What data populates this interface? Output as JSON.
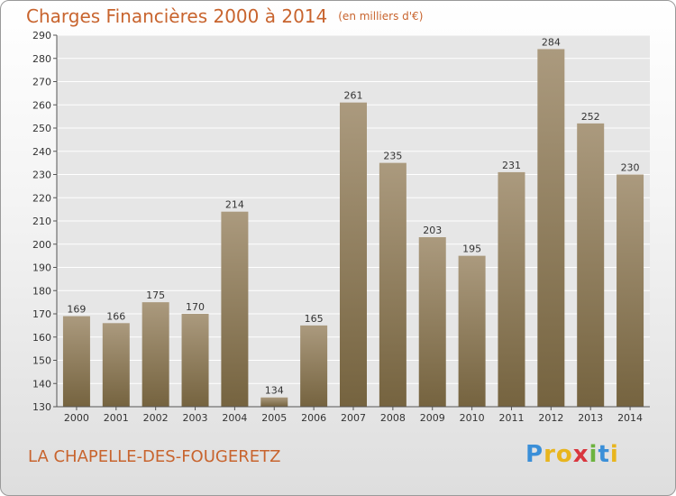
{
  "chart_data": {
    "type": "bar",
    "title": "Charges Financières 2000 à 2014",
    "subtitle": "(en milliers d'€)",
    "categories": [
      "2000",
      "2001",
      "2002",
      "2003",
      "2004",
      "2005",
      "2006",
      "2007",
      "2008",
      "2009",
      "2010",
      "2011",
      "2012",
      "2013",
      "2014"
    ],
    "values": [
      169,
      166,
      175,
      170,
      214,
      134,
      165,
      261,
      235,
      203,
      195,
      231,
      284,
      252,
      230
    ],
    "ylim": [
      130,
      290
    ],
    "yticks": [
      130,
      140,
      150,
      160,
      170,
      180,
      190,
      200,
      210,
      220,
      230,
      240,
      250,
      260,
      270,
      280,
      290
    ],
    "grid": true,
    "bar_color": "#8f7c5f"
  },
  "footer": {
    "commune": "LA CHAPELLE-DES-FOUGERETZ",
    "logo": {
      "text": "Proxiti",
      "letters": [
        {
          "ch": "P",
          "color": "#3a8fd8"
        },
        {
          "ch": "r",
          "color": "#e8b51e"
        },
        {
          "ch": "o",
          "color": "#e8b51e"
        },
        {
          "ch": "x",
          "color": "#d9363e"
        },
        {
          "ch": "i",
          "color": "#6db33f"
        },
        {
          "ch": "t",
          "color": "#3a8fd8"
        },
        {
          "ch": "i",
          "color": "#e8b51e"
        }
      ]
    }
  }
}
